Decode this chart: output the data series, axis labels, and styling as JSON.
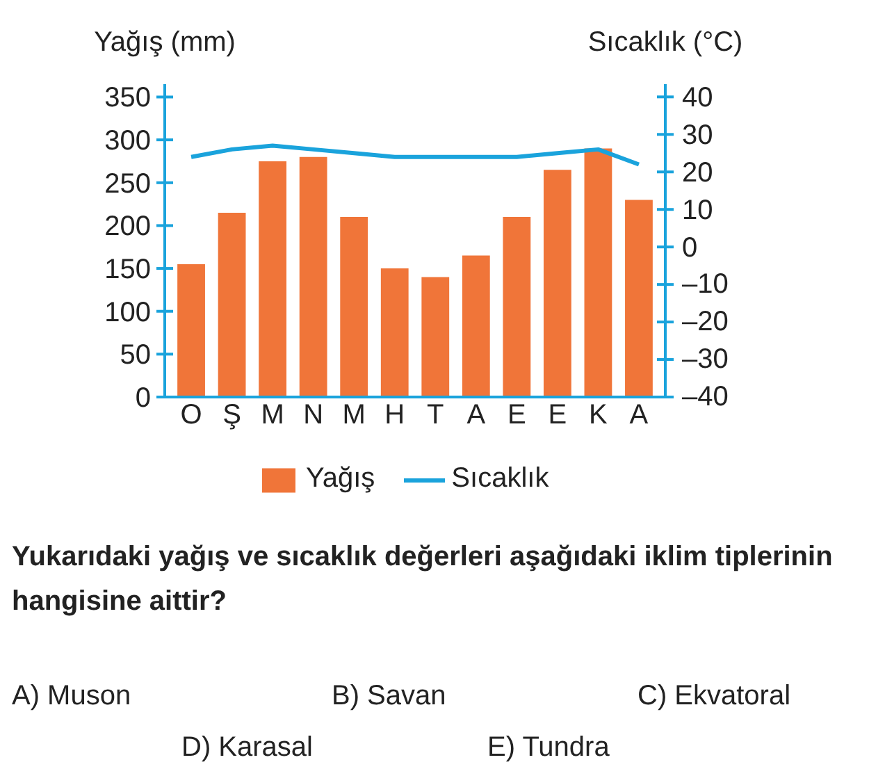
{
  "chart_data": {
    "type": "bar",
    "ylabel": "Yağış (mm)",
    "y2label": "Sıcaklık (°C)",
    "categories": [
      "O",
      "Ş",
      "M",
      "N",
      "M",
      "H",
      "T",
      "A",
      "E",
      "E",
      "K",
      "A"
    ],
    "series": [
      {
        "name": "Yağış",
        "color": "#f07539",
        "values": [
          155,
          215,
          275,
          280,
          210,
          150,
          140,
          165,
          210,
          265,
          290,
          230
        ]
      },
      {
        "name": "Sıcaklık",
        "type": "line",
        "axis": "y2",
        "color": "#1aa3dc",
        "values": [
          24,
          26,
          27,
          26,
          25,
          24,
          24,
          24,
          24,
          25,
          26,
          22
        ]
      }
    ],
    "ylim": [
      0,
      365
    ],
    "yticks": [
      0,
      50,
      100,
      150,
      200,
      250,
      300,
      350
    ],
    "y2lim": [
      -40,
      43.4
    ],
    "y2ticks": [
      {
        "value": -40,
        "label": "–40"
      },
      {
        "value": -30,
        "label": "–30"
      },
      {
        "value": -20,
        "label": "–20"
      },
      {
        "value": -10,
        "label": "–10"
      },
      0,
      10,
      20,
      30,
      40
    ],
    "grid": false,
    "legend": "bottom",
    "annotations": [
      "Yukarıdaki yağış ve sıcaklık değerleri aşağıdaki iklim tiplerinin hangisine aittir?",
      "A) Muson",
      "B) Savan",
      "C) Ekvatoral",
      "D) Karasal",
      "E) Tundra"
    ]
  }
}
